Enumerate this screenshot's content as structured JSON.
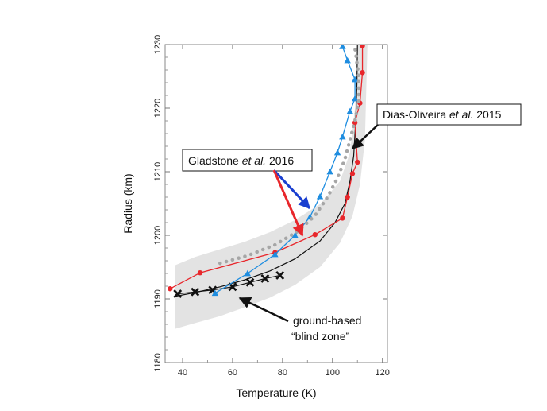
{
  "chart_data": {
    "type": "line",
    "title": "",
    "xlabel": "Temperature (K)",
    "ylabel": "Radius (km)",
    "xlim": [
      33,
      122
    ],
    "ylim": [
      1180,
      1230
    ],
    "xticks": [
      40,
      60,
      80,
      100,
      120
    ],
    "yticks": [
      1180,
      1190,
      1200,
      1210,
      1220,
      1230
    ],
    "grid": false,
    "band": {
      "name": "ground-based “blind zone”",
      "color": "#e3e3e3",
      "upper": [
        [
          37,
          1195.3
        ],
        [
          45,
          1196.6
        ],
        [
          55,
          1197.8
        ],
        [
          65,
          1199.0
        ],
        [
          75,
          1200.5
        ],
        [
          85,
          1202.4
        ],
        [
          95,
          1204.9
        ],
        [
          103,
          1208.5
        ],
        [
          107,
          1213
        ],
        [
          109,
          1220
        ],
        [
          110,
          1230
        ]
      ],
      "lower": [
        [
          37,
          1185.3
        ],
        [
          45,
          1186.2
        ],
        [
          55,
          1187.3
        ],
        [
          65,
          1188.7
        ],
        [
          75,
          1190.2
        ],
        [
          85,
          1192.2
        ],
        [
          95,
          1195.0
        ],
        [
          103,
          1198.8
        ],
        [
          108,
          1203
        ],
        [
          111,
          1208
        ],
        [
          113,
          1215
        ],
        [
          114,
          1230
        ]
      ]
    },
    "series": [
      {
        "name": "Dias-Oliveira et al. 2015",
        "color": "#111111",
        "marker": "none",
        "x": [
          37,
          45,
          55,
          65,
          75,
          85,
          95,
          101,
          105,
          107,
          108.5,
          109.3,
          109.8,
          110
        ],
        "y": [
          1190.4,
          1191.0,
          1191.9,
          1193.0,
          1194.4,
          1196.3,
          1199.1,
          1202.0,
          1205.0,
          1208.5,
          1212.5,
          1218.0,
          1224.0,
          1230.0
        ]
      },
      {
        "name": "",
        "color": "#111111",
        "marker": "x",
        "x": [
          38,
          45,
          52,
          60,
          67,
          73,
          79
        ],
        "y": [
          1190.8,
          1191.1,
          1191.4,
          1191.9,
          1192.6,
          1193.2,
          1193.7
        ]
      },
      {
        "name": "Gladstone et al. 2016",
        "color": "#e8262b",
        "marker": "circle",
        "x": [
          35,
          47,
          77,
          93,
          104,
          106,
          108,
          110,
          109,
          111,
          112,
          112
        ],
        "y": [
          1191.6,
          1194.1,
          1197.3,
          1200.1,
          1202.7,
          1206.0,
          1209.7,
          1211.5,
          1217.7,
          1220.8,
          1225.6,
          1229.8
        ]
      },
      {
        "name": "Gladstone et al. 2016",
        "color": "#1e8de0",
        "marker": "triangle",
        "x": [
          53,
          66,
          77,
          85,
          91,
          95,
          99,
          102,
          104,
          107,
          109,
          109,
          106,
          104
        ],
        "y": [
          1190.9,
          1194.0,
          1197.0,
          1200.0,
          1202.9,
          1206.1,
          1210.0,
          1213.0,
          1215.5,
          1219.5,
          1221.5,
          1224.5,
          1227.5,
          1229.7
        ]
      },
      {
        "name": "",
        "color": "#a6a6a6",
        "marker": "dotted",
        "x": [
          55,
          66,
          77,
          86,
          93,
          98,
          102,
          105,
          107,
          109,
          110.5,
          110.5,
          109
        ],
        "y": [
          1195.6,
          1196.8,
          1198.5,
          1200.6,
          1203.1,
          1206.0,
          1209.0,
          1212.0,
          1215.0,
          1218.0,
          1221.0,
          1225.0,
          1229.5
        ]
      }
    ],
    "annotations": [
      {
        "text_parts": [
          "Gladstone ",
          "et al.",
          " 2016"
        ]
      },
      {
        "text_parts": [
          "Dias-Oliveira ",
          "et al.",
          " 2015"
        ]
      },
      {
        "text_lines": [
          "ground-based",
          "“blind zone”"
        ]
      }
    ]
  }
}
